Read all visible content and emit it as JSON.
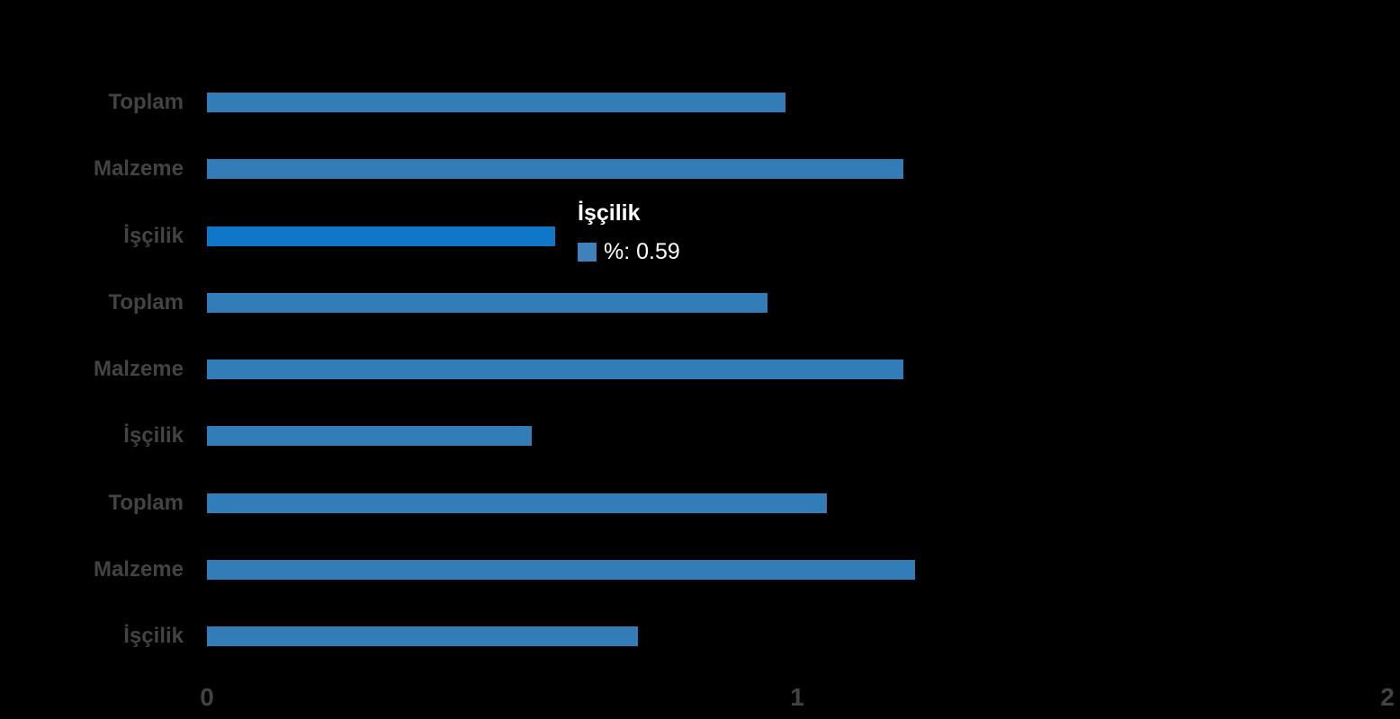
{
  "background_color": "#000000",
  "chart_data": {
    "type": "bar",
    "orientation": "horizontal",
    "title": "",
    "xlabel": "",
    "ylabel": "",
    "categories": [
      "Toplam",
      "Malzeme",
      "İşçilik",
      "Toplam",
      "Malzeme",
      "İşçilik",
      "Toplam",
      "Malzeme",
      "İşçilik"
    ],
    "series": [
      {
        "name": "%",
        "values": [
          0.98,
          1.18,
          0.59,
          0.95,
          1.18,
          0.55,
          1.05,
          1.2,
          0.73
        ]
      }
    ],
    "xlim": [
      0,
      2
    ],
    "x_ticks": [
      "0",
      "1",
      "2"
    ],
    "x_tick_values": [
      0,
      1,
      2
    ],
    "grid": false,
    "legend_position": "none",
    "bar_color": "#327CB8",
    "bar_hover_color": "#1076C8",
    "axis_label_color": "#434343",
    "hovered_bar_index": 2
  },
  "tooltip": {
    "title": "İşçilik",
    "series_label": "%",
    "value": "0.59",
    "text": "%: 0.59",
    "swatch_color": "#3D82BB",
    "text_color": "#FFFFFF"
  }
}
